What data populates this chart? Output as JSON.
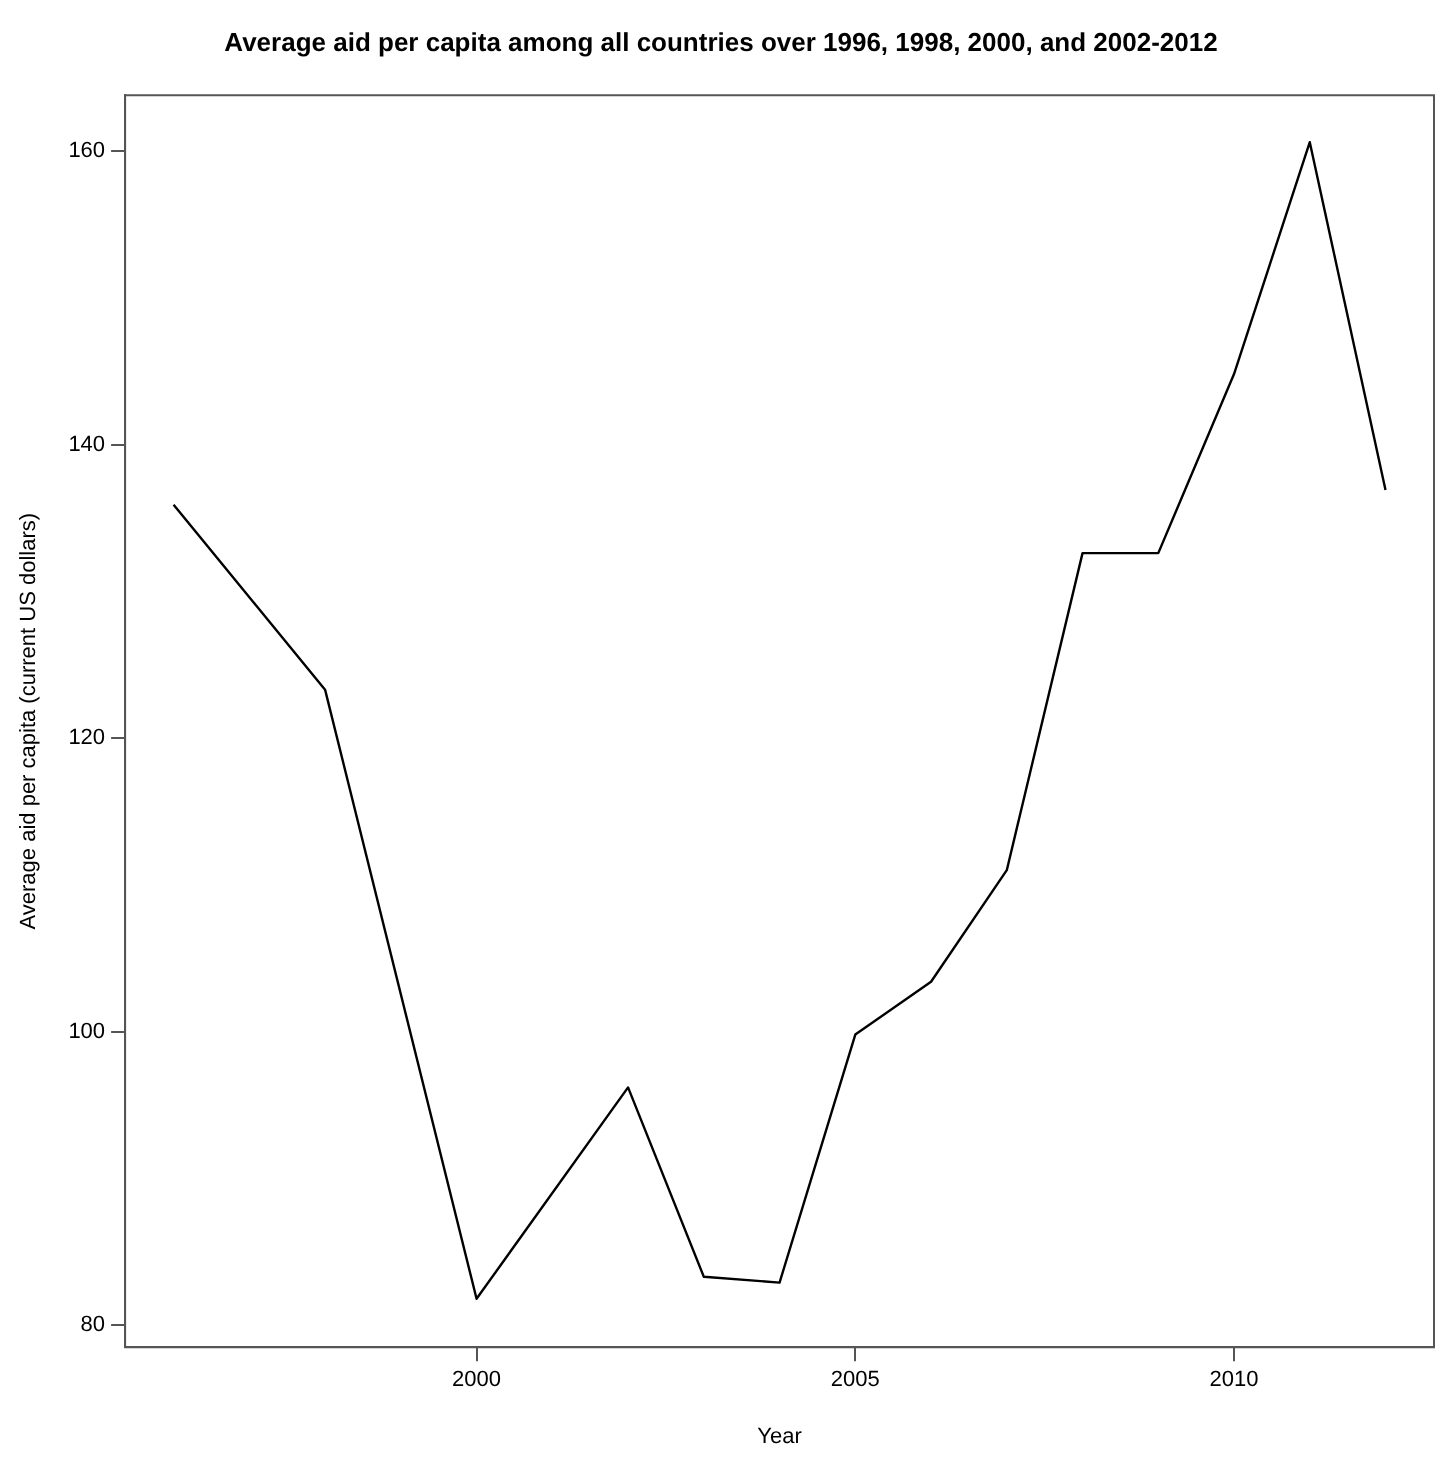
{
  "chart_data": {
    "type": "line",
    "title": "Average aid per capita among all countries over 1996, 1998, 2000, and 2002-2012",
    "xlabel": "Year",
    "ylabel": "Average aid per capita (current US dollars)",
    "x": [
      1996,
      1998,
      2000,
      2002,
      2003,
      2004,
      2005,
      2006,
      2007,
      2008,
      2009,
      2010,
      2011,
      2012
    ],
    "series": [
      {
        "color": "#000000",
        "values": [
          135.9,
          123.3,
          81.8,
          96.2,
          83.3,
          82.9,
          99.8,
          103.4,
          111.0,
          132.6,
          132.6,
          144.8,
          160.6,
          136.9
        ]
      }
    ],
    "xlim": [
      1995.36,
      2012.64
    ],
    "xticks": [
      2000,
      2005,
      2010
    ],
    "ylim": [
      78.5,
      163.8
    ],
    "yticks": [
      80,
      100,
      120,
      140,
      160
    ],
    "grid": false,
    "legend": false,
    "marker": "none",
    "line_style": "solid"
  }
}
